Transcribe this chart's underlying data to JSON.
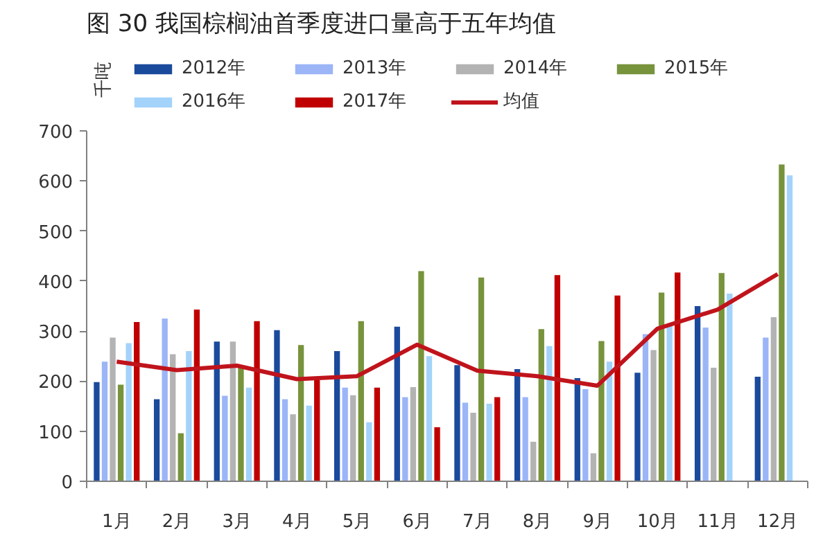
{
  "chart_data": {
    "type": "bar",
    "title": "图 30 我国棕榈油首季度进口量高于五年均值",
    "ylabel": "千吨",
    "categories": [
      "1月",
      "2月",
      "3月",
      "4月",
      "5月",
      "6月",
      "7月",
      "8月",
      "9月",
      "10月",
      "11月",
      "12月"
    ],
    "series": [
      {
        "name": "2012年",
        "color": "#1a4a9c",
        "values": [
          198,
          164,
          279,
          302,
          260,
          309,
          232,
          224,
          206,
          217,
          350,
          209
        ]
      },
      {
        "name": "2013年",
        "color": "#9bb5f7",
        "values": [
          239,
          325,
          171,
          164,
          187,
          168,
          157,
          168,
          184,
          294,
          307,
          287
        ]
      },
      {
        "name": "2014年",
        "color": "#b3b3b3",
        "values": [
          287,
          254,
          279,
          134,
          172,
          188,
          137,
          79,
          56,
          262,
          227,
          328
        ]
      },
      {
        "name": "2015年",
        "color": "#77933c",
        "values": [
          193,
          96,
          230,
          272,
          320,
          420,
          407,
          304,
          280,
          377,
          416,
          633
        ]
      },
      {
        "name": "2016年",
        "color": "#a3d3fa",
        "values": [
          276,
          260,
          187,
          151,
          118,
          250,
          155,
          270,
          239,
          310,
          375,
          611
        ]
      },
      {
        "name": "2017年",
        "color": "#c00000",
        "values": [
          318,
          343,
          320,
          202,
          187,
          108,
          168,
          412,
          371,
          417,
          null,
          null
        ]
      },
      {
        "name": "均值",
        "type": "line",
        "color": "#c0141c",
        "values": [
          239,
          222,
          231,
          204,
          210,
          273,
          221,
          210,
          191,
          305,
          343,
          414
        ]
      }
    ],
    "ylim": [
      0,
      700
    ],
    "yticks": [
      0,
      100,
      200,
      300,
      400,
      500,
      600,
      700
    ],
    "legend": "top",
    "grid": false
  }
}
